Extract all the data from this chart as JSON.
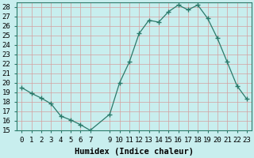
{
  "x": [
    0,
    1,
    2,
    3,
    4,
    5,
    6,
    7,
    9,
    10,
    11,
    12,
    13,
    14,
    15,
    16,
    17,
    18,
    19,
    20,
    21,
    22,
    23
  ],
  "y": [
    19.5,
    18.9,
    18.4,
    17.8,
    16.5,
    16.1,
    15.6,
    15.0,
    16.7,
    20.0,
    22.2,
    25.2,
    26.6,
    26.4,
    27.5,
    28.2,
    27.7,
    28.2,
    26.8,
    24.7,
    22.2,
    19.7,
    18.3
  ],
  "line_color": "#2a7a6a",
  "marker": "+",
  "marker_size": 4,
  "background_color": "#c8eeee",
  "grid_color": "#b0d8d8",
  "xlabel": "Humidex (Indice chaleur)",
  "ylim": [
    15,
    28.5
  ],
  "xlim": [
    -0.5,
    23.5
  ],
  "yticks": [
    15,
    16,
    17,
    18,
    19,
    20,
    21,
    22,
    23,
    24,
    25,
    26,
    27,
    28
  ],
  "xticks": [
    0,
    1,
    2,
    3,
    4,
    5,
    6,
    7,
    9,
    10,
    11,
    12,
    13,
    14,
    15,
    16,
    17,
    18,
    19,
    20,
    21,
    22,
    23
  ],
  "tick_fontsize": 6.5,
  "label_fontsize": 7.5
}
